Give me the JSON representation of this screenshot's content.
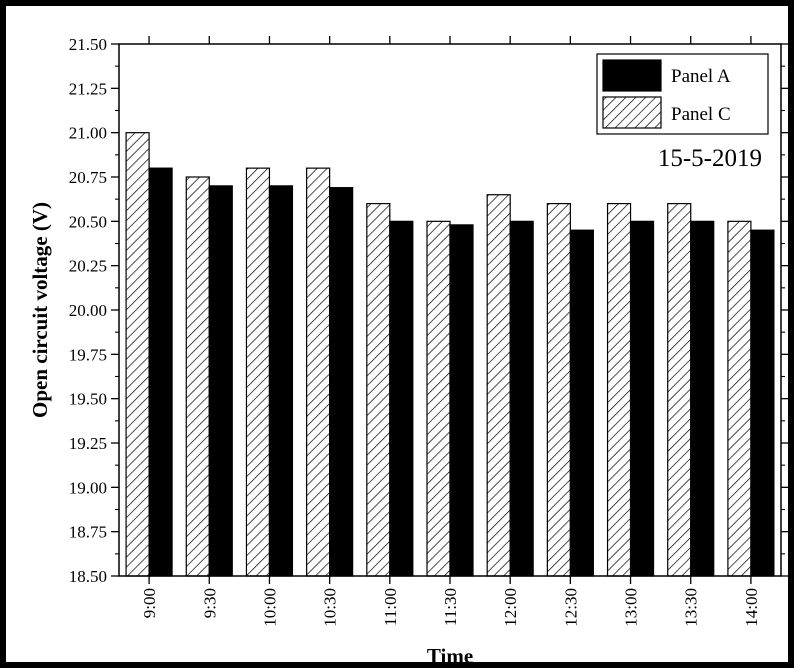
{
  "chart_data": {
    "type": "bar",
    "categories": [
      "9:00",
      "9:30",
      "10:00",
      "10:30",
      "11:00",
      "11:30",
      "12:00",
      "12:30",
      "13:00",
      "13:30",
      "14:00"
    ],
    "series": [
      {
        "name": "Panel C",
        "values": [
          21.0,
          20.75,
          20.8,
          20.8,
          20.6,
          20.5,
          20.65,
          20.6,
          20.6,
          20.6,
          20.5
        ],
        "pattern": "diagonal-hatch",
        "color": "#ffffff",
        "stroke": "#000000"
      },
      {
        "name": "Panel A",
        "values": [
          20.8,
          20.7,
          20.7,
          20.69,
          20.5,
          20.48,
          20.5,
          20.45,
          20.5,
          20.5,
          20.45
        ],
        "pattern": "solid",
        "color": "#000000",
        "stroke": "#000000"
      }
    ],
    "legend_order": [
      "Panel A",
      "Panel C"
    ],
    "title": "",
    "annotation": "15-5-2019",
    "xlabel": "Time",
    "ylabel": "Open circuit voltage (V)",
    "ylim": [
      18.5,
      21.5
    ],
    "yticks": [
      "18.50",
      "18.75",
      "19.00",
      "19.25",
      "19.50",
      "19.75",
      "20.00",
      "20.25",
      "20.50",
      "20.75",
      "21.00",
      "21.25",
      "21.50"
    ],
    "grid": false,
    "legend_position": "top-right"
  }
}
